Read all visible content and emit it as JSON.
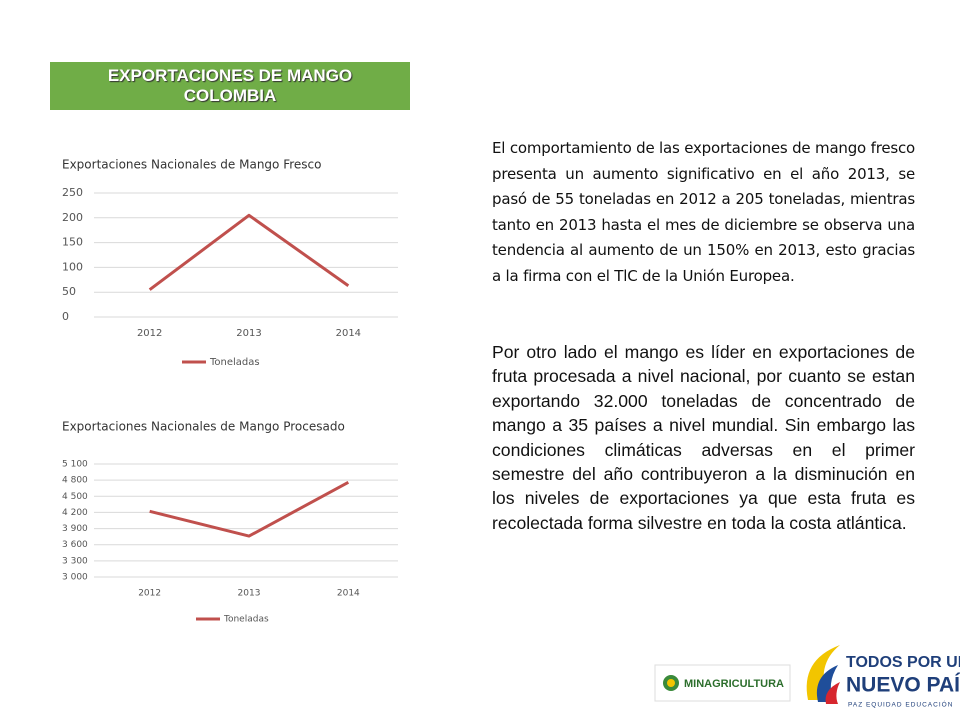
{
  "header": {
    "title": "EXPORTACIONES DE MANGO COLOMBIA"
  },
  "chart_data": [
    {
      "type": "line",
      "title": "Exportaciones Nacionales de Mango Fresco",
      "categories": [
        "2012",
        "2013",
        "2014"
      ],
      "series": [
        {
          "name": "Toneladas",
          "color": "#c0504d",
          "values": [
            55,
            205,
            63
          ]
        }
      ],
      "ylim": [
        0,
        250
      ],
      "yticks": [
        0,
        50,
        100,
        150,
        200,
        250
      ],
      "grid": true,
      "legend": "bottom"
    },
    {
      "type": "line",
      "title": "Exportaciones Nacionales de Mango Procesado",
      "categories": [
        "2012",
        "2013",
        "2014"
      ],
      "series": [
        {
          "name": "Toneladas",
          "color": "#c0504d",
          "values": [
            4220,
            3760,
            4760
          ]
        }
      ],
      "ylim": [
        3000,
        5100
      ],
      "yticks": [
        {
          "value": 3000,
          "label": "3 000"
        },
        {
          "value": 3300,
          "label": "3 300"
        },
        {
          "value": 3600,
          "label": "3 600"
        },
        {
          "value": 3900,
          "label": "3 900"
        },
        {
          "value": 4200,
          "label": "4 200"
        },
        {
          "value": 4500,
          "label": "4 500"
        },
        {
          "value": 4800,
          "label": "4 800"
        },
        {
          "value": 5100,
          "label": "5 100"
        }
      ],
      "grid": true,
      "legend": "bottom"
    }
  ],
  "paragraphs": [
    "El comportamiento de las exportaciones de mango fresco presenta un aumento significativo en el año 2013, se pasó de 55 toneladas en 2012 a 205 toneladas, mientras tanto en 2013 hasta el mes de diciembre se observa una tendencia al aumento de un 150% en 2013, esto gracias a la firma con el TlC de la Unión Europea.",
    "Por otro lado el mango es líder en exportaciones de fruta procesada a nivel nacional, por cuanto se estan exportando 32.000 toneladas de concentrado de mango a 35 países a nivel mundial. Sin embargo las condiciones climáticas adversas en el primer semestre del año contribuyeron a la disminución en los niveles de exportaciones ya que esta fruta es recolectada forma silvestre en toda la costa atlántica."
  ],
  "logos": {
    "ministry": "MINAGRICULTURA",
    "slogan_1": "TODOS POR UN",
    "slogan_2": "NUEVO PAÍS",
    "slogan_3": "PAZ  EQUIDAD  EDUCACIÓN"
  }
}
